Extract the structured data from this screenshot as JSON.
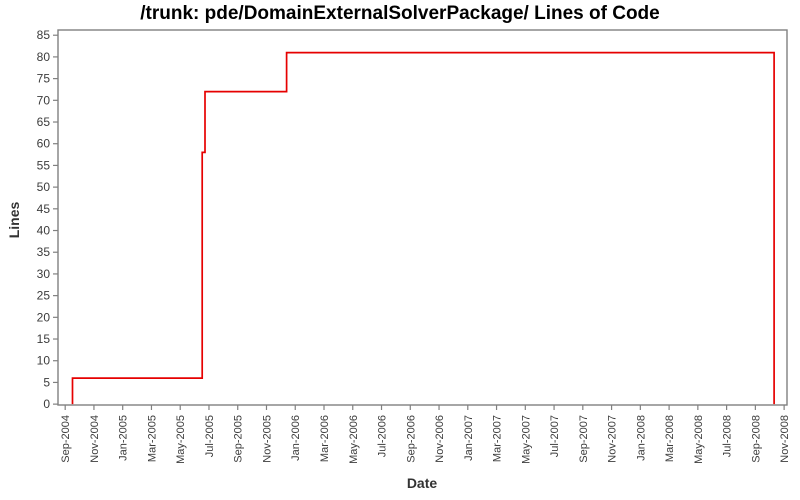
{
  "chart_data": {
    "type": "line",
    "subtype": "step",
    "title": "/trunk: pde/DomainExternalSolverPackage/ Lines of Code",
    "xlabel": "Date",
    "ylabel": "Lines",
    "legend": "none",
    "grid": "off",
    "x_axis": {
      "unit": "months since Sep-2004",
      "xlim": [
        -0.5,
        50.2
      ],
      "tick_positions": [
        0,
        2,
        4,
        6,
        8,
        10,
        12,
        14,
        16,
        18,
        20,
        22,
        24,
        26,
        28,
        30,
        32,
        34,
        36,
        38,
        40,
        42,
        44,
        46,
        48,
        50
      ],
      "tick_labels": [
        "Sep-2004",
        "Nov-2004",
        "Jan-2005",
        "Mar-2005",
        "May-2005",
        "Jul-2005",
        "Sep-2005",
        "Nov-2005",
        "Jan-2006",
        "Mar-2006",
        "May-2006",
        "Jul-2006",
        "Sep-2006",
        "Nov-2006",
        "Jan-2007",
        "Mar-2007",
        "May-2007",
        "Jul-2007",
        "Sep-2007",
        "Nov-2007",
        "Jan-2008",
        "Mar-2008",
        "May-2008",
        "Jul-2008",
        "Sep-2008",
        "Nov-2008"
      ]
    },
    "y_axis": {
      "unit": "lines of code",
      "ylim": [
        -0.2,
        86.2
      ],
      "tick_values": [
        0,
        5,
        10,
        15,
        20,
        25,
        30,
        35,
        40,
        45,
        50,
        55,
        60,
        65,
        70,
        75,
        80,
        85
      ]
    },
    "series": [
      {
        "name": "Lines of Code",
        "color": "#e60000",
        "points_x_months": [
          0.51,
          0.51,
          9.53,
          9.53,
          9.72,
          9.72,
          15.4,
          15.4,
          49.3,
          49.3
        ],
        "points_y_lines": [
          0,
          6,
          6,
          58,
          58,
          72,
          72,
          81,
          81,
          0
        ]
      }
    ],
    "steps_summary": [
      {
        "date": "Sep-2004",
        "lines": 6
      },
      {
        "date": "Jun-2005",
        "lines": 58
      },
      {
        "date": "Jun-2005",
        "lines": 72
      },
      {
        "date": "Dec-2005",
        "lines": 81
      },
      {
        "date": "Oct-2008",
        "lines": 0
      }
    ],
    "colors": {
      "line": "#e60000",
      "axis": "#808080",
      "tick_text": "#3c3c3c",
      "title_text": "#000000",
      "background": "#ffffff"
    }
  }
}
